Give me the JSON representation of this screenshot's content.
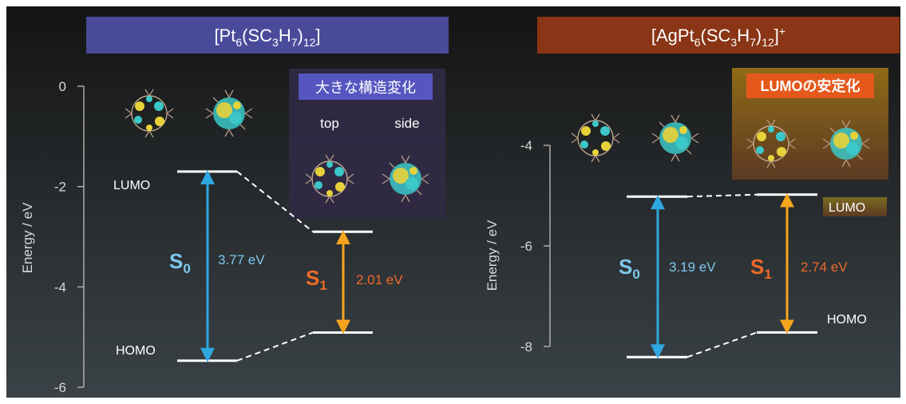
{
  "colors": {
    "bg_top": "#141414",
    "bg_bottom": "#3a4247",
    "left_title_bg": "#4a4a9a",
    "right_title_bg": "#8a3516",
    "s0_arrow": "#2ea8e0",
    "s1_arrow": "#f5a41e",
    "s0_text": "#7fc8ee",
    "s1_text": "#ef6a2a",
    "badge_left": "#5656c0",
    "badge_right": "#e4581c"
  },
  "left_panel": {
    "title": "[Pt6(SC3H7)12]",
    "y_label": "Energy / eV",
    "y_ticks": [
      "0",
      "-2",
      "-4",
      "-6"
    ],
    "levels": {
      "s0_lumo": -1.7,
      "s0_homo": -5.47,
      "s1_lumo": -2.9,
      "s1_homo": -4.91
    },
    "s0_label": "S",
    "s0_sub": "0",
    "s0_gap": "3.77 eV",
    "s1_label": "S",
    "s1_sub": "1",
    "s1_gap": "2.01 eV",
    "lumo_label": "LUMO",
    "homo_label": "HOMO",
    "inset_badge": "大きな構造変化",
    "inset_top": "top",
    "inset_side": "side"
  },
  "right_panel": {
    "title": "[AgPt6(SC3H7)12]+",
    "y_label": "Energy / eV",
    "y_ticks": [
      "-4",
      "-6",
      "-8"
    ],
    "levels": {
      "s0_lumo": -5.02,
      "s0_homo": -8.21,
      "s1_lumo": -4.98,
      "s1_homo": -7.72
    },
    "s0_label": "S",
    "s0_sub": "0",
    "s0_gap": "3.19 eV",
    "s1_label": "S",
    "s1_sub": "1",
    "s1_gap": "2.74 eV",
    "lumo_label": "LUMO",
    "homo_label": "HOMO",
    "inset_badge": "LUMOの安定化"
  }
}
